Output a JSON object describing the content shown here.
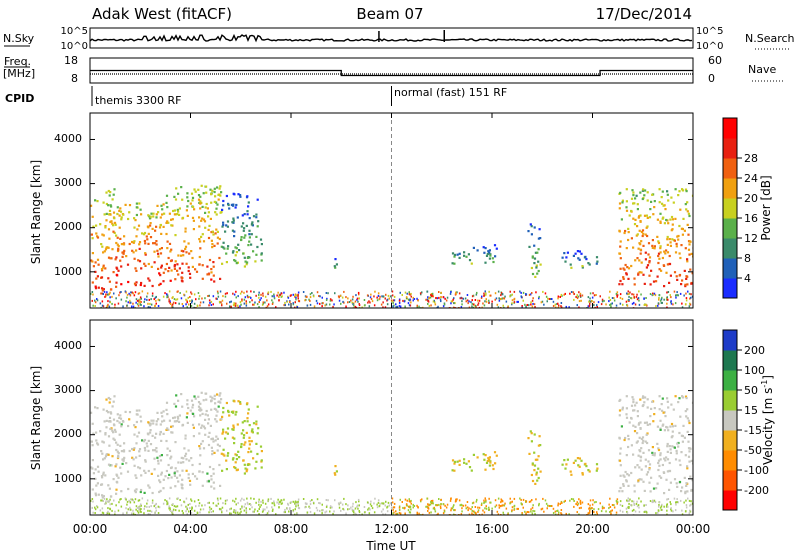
{
  "header": {
    "radar": "Adak West (fitACF)",
    "beam": "Beam 07",
    "date": "17/Dec/2014"
  },
  "noise_panel": {
    "left_label": "N.Sky",
    "right_label": "N.Search",
    "yticks": [
      "10^5",
      "10^0"
    ]
  },
  "freq_panel": {
    "left_label": "Freq.",
    "left_unit": "[MHz]",
    "right_label": "Nave",
    "left_ticks": [
      "18",
      "8"
    ],
    "right_ticks": [
      "60",
      "0"
    ]
  },
  "cpid_panel": {
    "label": "CPID",
    "segments": [
      {
        "text": "themis 3300 RF",
        "start_hour": 0
      },
      {
        "text": "normal (fast) 151 RF",
        "start_hour": 12
      }
    ]
  },
  "power_panel": {
    "ylabel": "Slant Range [km]",
    "yticks": [
      "1000",
      "2000",
      "3000",
      "4000"
    ],
    "colorbar_label": "Power [dB]",
    "colorbar_ticks": [
      "4",
      "8",
      "12",
      "16",
      "20",
      "24",
      "28"
    ]
  },
  "velocity_panel": {
    "ylabel": "Slant Range [km]",
    "yticks": [
      "1000",
      "2000",
      "3000",
      "4000"
    ],
    "colorbar_label": "Velocity [m s",
    "colorbar_label_sup": "-1",
    "colorbar_label_end": "]",
    "colorbar_ticks": [
      "-200",
      "-100",
      "-50",
      "-15",
      "15",
      "50",
      "100",
      "200"
    ]
  },
  "xaxis": {
    "label": "Time UT",
    "ticks": [
      "00:00",
      "04:00",
      "08:00",
      "12:00",
      "16:00",
      "20:00",
      "00:00"
    ]
  },
  "chart_data": {
    "type": "heatmap",
    "x_range_hours": [
      0,
      24
    ],
    "y_range_km": [
      180,
      4600
    ],
    "freq_mhz": [
      {
        "from": 0,
        "to": 10.0,
        "value": 13
      },
      {
        "from": 10.0,
        "to": 20.3,
        "value": 11
      },
      {
        "from": 20.3,
        "to": 24,
        "value": 13
      }
    ],
    "cpid_change_hour": 12,
    "power_colors": [
      "#1a2cff",
      "#2060b8",
      "#3a8a6a",
      "#5ab04a",
      "#c8d020",
      "#f0a010",
      "#f06010",
      "#e82010",
      "#ff0000"
    ],
    "velocity_colors": [
      "#ff0000",
      "#ff5500",
      "#ff8c00",
      "#f0b020",
      "#c8c8c0",
      "#9acd32",
      "#3cb043",
      "#1e7850",
      "#1e3cc8"
    ],
    "ground_scatter_color": "#c8c8c0",
    "scatter_regions": [
      {
        "t0": 0.0,
        "t1": 1.0,
        "r0": 600,
        "r1": 2900,
        "power": 22
      },
      {
        "t0": 1.0,
        "t1": 3.0,
        "r0": 700,
        "r1": 2600,
        "power": 24
      },
      {
        "t0": 3.0,
        "t1": 5.2,
        "r0": 800,
        "r1": 3000,
        "power": 22
      },
      {
        "t0": 5.2,
        "t1": 6.8,
        "r0": 1100,
        "r1": 2800,
        "power": 10
      },
      {
        "t0": 9.5,
        "t1": 9.8,
        "r0": 1100,
        "r1": 1400,
        "power": 6
      },
      {
        "t0": 14.3,
        "t1": 16.2,
        "r0": 1200,
        "r1": 1650,
        "power": 8
      },
      {
        "t0": 17.4,
        "t1": 17.9,
        "r0": 900,
        "r1": 2200,
        "power": 10
      },
      {
        "t0": 18.7,
        "t1": 20.2,
        "r0": 1100,
        "r1": 1500,
        "power": 8
      },
      {
        "t0": 21.0,
        "t1": 24.0,
        "r0": 700,
        "r1": 2900,
        "power": 22
      }
    ]
  }
}
